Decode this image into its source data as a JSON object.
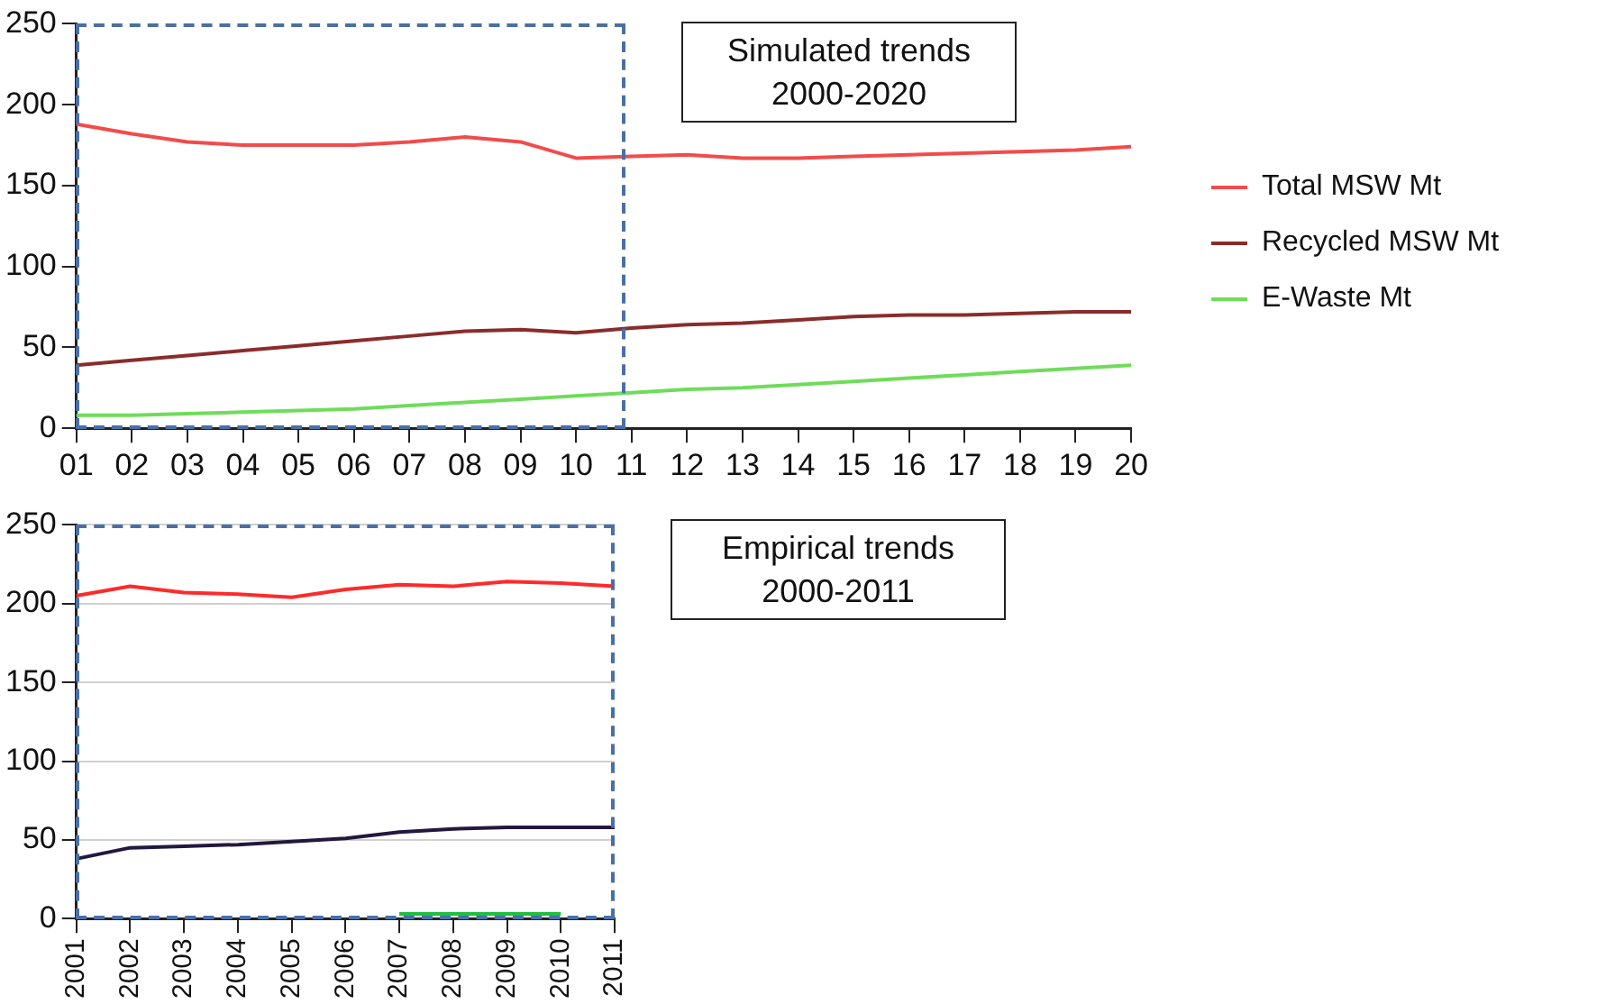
{
  "chart_data": [
    {
      "type": "line",
      "categories": [
        "01",
        "02",
        "03",
        "04",
        "05",
        "06",
        "07",
        "08",
        "09",
        "10",
        "11",
        "12",
        "13",
        "14",
        "15",
        "16",
        "17",
        "18",
        "19",
        "20"
      ],
      "series": [
        {
          "name": "Total MSW Mt",
          "color": "#f24b4b",
          "values": [
            188,
            182,
            177,
            175,
            175,
            175,
            177,
            180,
            177,
            167,
            168,
            169,
            167,
            167,
            168,
            169,
            170,
            171,
            172,
            174
          ]
        },
        {
          "name": "Recycled MSW Mt",
          "color": "#8b2c2c",
          "values": [
            39,
            42,
            45,
            48,
            51,
            54,
            57,
            60,
            61,
            59,
            62,
            64,
            65,
            67,
            69,
            70,
            70,
            71,
            72,
            72
          ]
        },
        {
          "name": "E-Waste Mt",
          "color": "#6fdc5a",
          "values": [
            8,
            8,
            9,
            10,
            11,
            12,
            14,
            16,
            18,
            20,
            22,
            24,
            25,
            27,
            29,
            31,
            33,
            35,
            37,
            39
          ]
        }
      ],
      "ylim": [
        0,
        250
      ],
      "yticks": [
        0,
        50,
        100,
        150,
        200,
        250
      ],
      "grid": false,
      "legend": "right",
      "marker": "none",
      "annotations": [
        "Simulated trends\n2000-2020"
      ]
    },
    {
      "type": "line",
      "categories": [
        "2001",
        "2002",
        "2003",
        "2004",
        "2005",
        "2006",
        "2007",
        "2008",
        "2009",
        "2010",
        "2011"
      ],
      "series": [
        {
          "color": "#ff2a2a",
          "values": [
            205,
            211,
            207,
            206,
            204,
            209,
            212,
            211,
            214,
            213,
            211
          ]
        },
        {
          "color": "#22183f",
          "values": [
            38,
            45,
            46,
            47,
            49,
            51,
            55,
            57,
            58,
            58,
            58
          ]
        },
        {
          "color": "#1fbf3f",
          "values": [
            null,
            null,
            null,
            null,
            null,
            null,
            3,
            3,
            3,
            3,
            null
          ]
        }
      ],
      "ylim": [
        0,
        250
      ],
      "yticks": [
        0,
        50,
        100,
        150,
        200,
        250
      ],
      "grid": "y",
      "legend": false,
      "marker": "none",
      "annotations": [
        "Empirical trends\n2000-2011"
      ]
    }
  ]
}
